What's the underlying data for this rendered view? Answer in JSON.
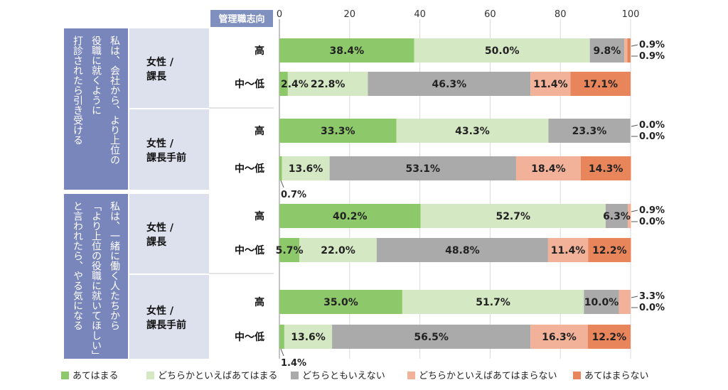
{
  "chart_data": {
    "type": "bar",
    "orientation": "horizontal",
    "stacked": true,
    "xlim": [
      0,
      100
    ],
    "ticks": [
      0,
      20,
      40,
      60,
      80,
      100
    ],
    "grid": true,
    "legend_position": "bottom",
    "header_label": "管理職志向",
    "series": [
      {
        "name": "あてはまる",
        "color": "#8dc96b"
      },
      {
        "name": "どちらかといえばあてはまる",
        "color": "#d5e8c4"
      },
      {
        "name": "どちらともいえない",
        "color": "#aaaaaa"
      },
      {
        "name": "どちらかといえばあてはまらない",
        "color": "#f2b29a"
      },
      {
        "name": "あてはまらない",
        "color": "#e8855b"
      }
    ],
    "groups": [
      {
        "label": "私は、会社から、より上位の役職に就くように打診されたら引き受ける",
        "label_lines": [
          "私は、会社から、より上位の",
          "役職に就くように",
          "打診されたら引き受ける"
        ],
        "subgroups": [
          {
            "role_lines": [
              "女性 /",
              "課長"
            ],
            "rows": [
              {
                "category": "高",
                "values": [
                  38.4,
                  50.0,
                  9.8,
                  0.9,
                  0.9
                ],
                "labels": [
                  "38.4%",
                  "50.0%",
                  "9.8%",
                  "0.9%",
                  "0.9%"
                ]
              },
              {
                "category": "中～低",
                "values": [
                  2.4,
                  22.8,
                  46.3,
                  11.4,
                  17.1
                ],
                "labels": [
                  "2.4%",
                  "22.8%",
                  "46.3%",
                  "11.4%",
                  "17.1%"
                ]
              }
            ]
          },
          {
            "role_lines": [
              "女性 /",
              "課長手前"
            ],
            "rows": [
              {
                "category": "高",
                "values": [
                  33.3,
                  43.3,
                  23.3,
                  0.0,
                  0.0
                ],
                "labels": [
                  "33.3%",
                  "43.3%",
                  "23.3%",
                  "0.0%",
                  "0.0%"
                ]
              },
              {
                "category": "中～低",
                "values": [
                  0.7,
                  13.6,
                  53.1,
                  18.4,
                  14.3
                ],
                "labels": [
                  "0.7%",
                  "13.6%",
                  "53.1%",
                  "18.4%",
                  "14.3%"
                ]
              }
            ]
          }
        ]
      },
      {
        "label": "私は、一緒に働く人たちから「より上位の役職に就いてほしい」と言われたら、やる気になる",
        "label_lines": [
          "私は、一緒に働く人たちから",
          "「より上位の役職に就いてほしい」",
          "と言われたら、やる気になる"
        ],
        "subgroups": [
          {
            "role_lines": [
              "女性 /",
              "課長"
            ],
            "rows": [
              {
                "category": "高",
                "values": [
                  40.2,
                  52.7,
                  6.3,
                  0.9,
                  0.0
                ],
                "labels": [
                  "40.2%",
                  "52.7%",
                  "6.3%",
                  "0.9%",
                  "0.0%"
                ]
              },
              {
                "category": "中～低",
                "values": [
                  5.7,
                  22.0,
                  48.8,
                  11.4,
                  12.2
                ],
                "labels": [
                  "5.7%",
                  "22.0%",
                  "48.8%",
                  "11.4%",
                  "12.2%"
                ]
              }
            ]
          },
          {
            "role_lines": [
              "女性 /",
              "課長手前"
            ],
            "rows": [
              {
                "category": "高",
                "values": [
                  35.0,
                  51.7,
                  10.0,
                  3.3,
                  0.0
                ],
                "labels": [
                  "35.0%",
                  "51.7%",
                  "10.0%",
                  "3.3%",
                  "0.0%"
                ]
              },
              {
                "category": "中～低",
                "values": [
                  1.4,
                  13.6,
                  56.5,
                  16.3,
                  12.2
                ],
                "labels": [
                  "1.4%",
                  "13.6%",
                  "56.5%",
                  "16.3%",
                  "12.2%"
                ]
              }
            ]
          }
        ]
      }
    ]
  }
}
